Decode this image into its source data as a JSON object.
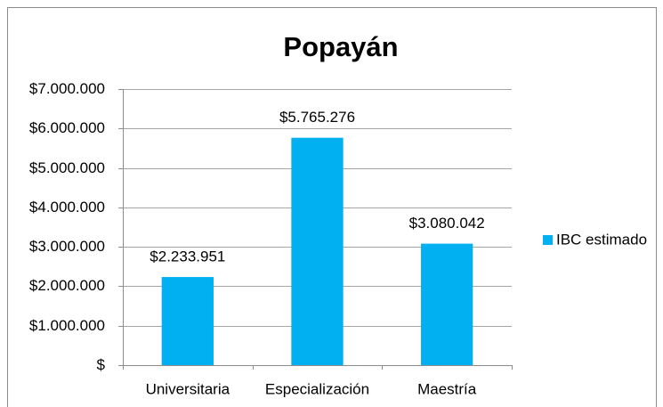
{
  "chart_data": {
    "type": "bar",
    "title": "Popayán",
    "categories": [
      "Universitaria",
      "Especialización",
      "Maestría"
    ],
    "series": [
      {
        "name": "IBC estimado",
        "color": "#00b0f0",
        "values": [
          2233951,
          5765276,
          3080042
        ],
        "value_labels": [
          "$2.233.951",
          "$5.765.276",
          "$3.080.042"
        ]
      }
    ],
    "ylim": [
      0,
      7000000
    ],
    "yticks": [
      {
        "value": 0,
        "label": "$"
      },
      {
        "value": 1000000,
        "label": "$1.000.000"
      },
      {
        "value": 2000000,
        "label": "$2.000.000"
      },
      {
        "value": 3000000,
        "label": "$3.000.000"
      },
      {
        "value": 4000000,
        "label": "$4.000.000"
      },
      {
        "value": 5000000,
        "label": "$5.000.000"
      },
      {
        "value": 6000000,
        "label": "$6.000.000"
      },
      {
        "value": 7000000,
        "label": "$7.000.000"
      }
    ],
    "grid": true,
    "legend": "right"
  }
}
